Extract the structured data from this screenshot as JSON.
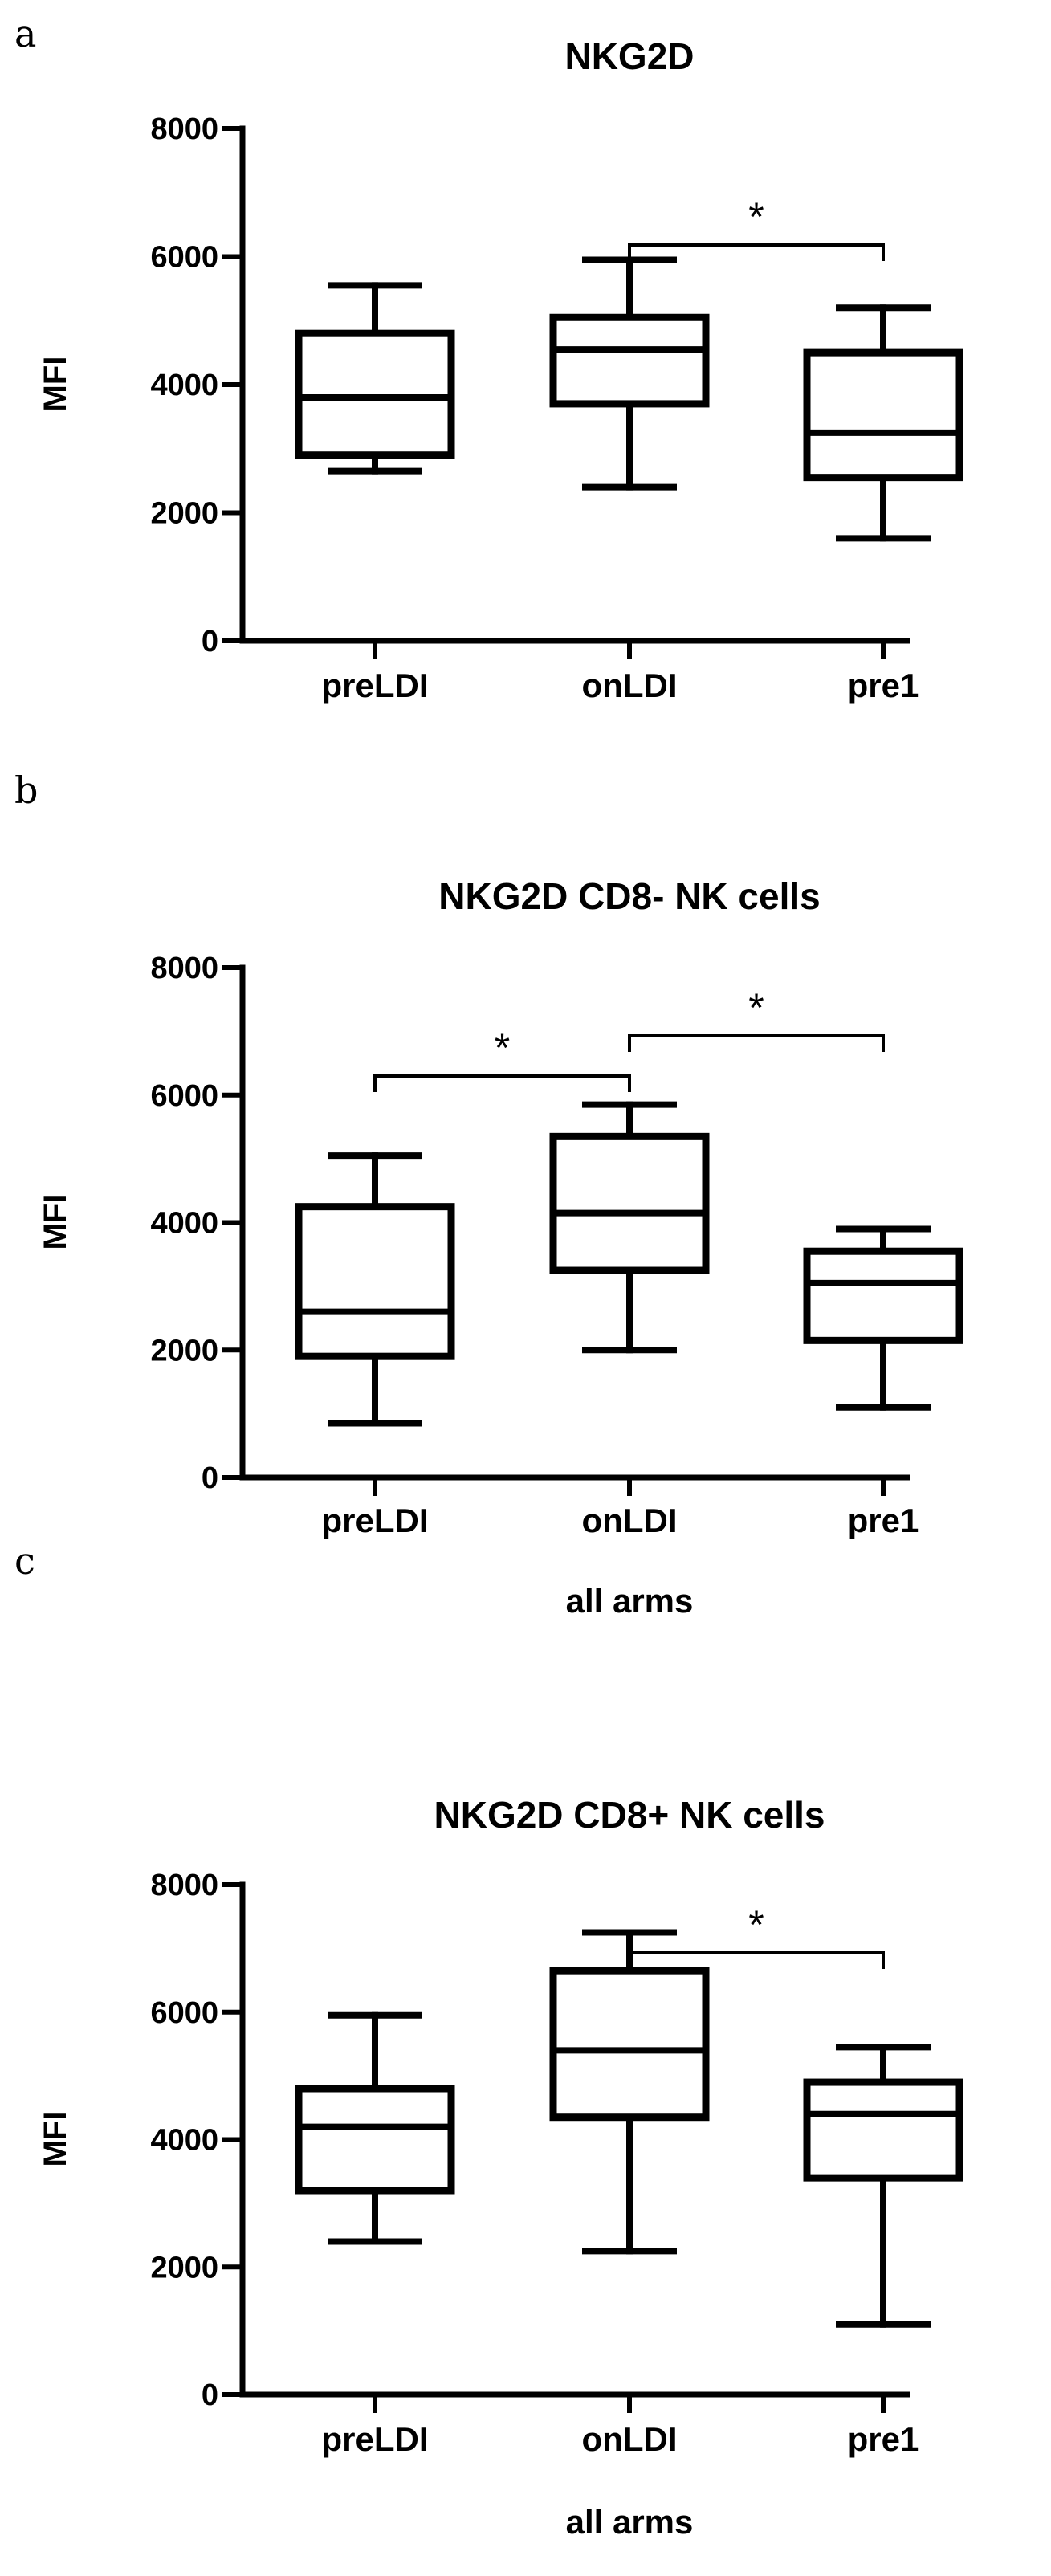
{
  "chart_data": [
    {
      "type": "box",
      "panel": "a",
      "title": "NKG2D",
      "ylabel": "MFI",
      "xlabel": "",
      "ylim": [
        0,
        8000
      ],
      "yticks": [
        "0",
        "2000",
        "4000",
        "6000",
        "8000"
      ],
      "categories": [
        "preLDI",
        "onLDI",
        "pre1"
      ],
      "boxes": [
        {
          "category": "preLDI",
          "min": 2650,
          "q1": 2900,
          "median": 3800,
          "q3": 4800,
          "max": 5550
        },
        {
          "category": "onLDI",
          "min": 2400,
          "q1": 3700,
          "median": 4550,
          "q3": 5050,
          "max": 5950
        },
        {
          "category": "pre1",
          "min": 1600,
          "q1": 2550,
          "median": 3250,
          "q3": 4500,
          "max": 5200
        }
      ],
      "significance": [
        {
          "from": "onLDI",
          "to": "pre1",
          "label": "*"
        }
      ]
    },
    {
      "type": "box",
      "panel": "b",
      "title": "NKG2D CD8- NK cells",
      "ylabel": "MFI",
      "xlabel": "all arms",
      "ylim": [
        0,
        8000
      ],
      "yticks": [
        "0",
        "2000",
        "4000",
        "6000",
        "8000"
      ],
      "categories": [
        "preLDI",
        "onLDI",
        "pre1"
      ],
      "boxes": [
        {
          "category": "preLDI",
          "min": 850,
          "q1": 1900,
          "median": 2600,
          "q3": 4250,
          "max": 5050
        },
        {
          "category": "onLDI",
          "min": 2000,
          "q1": 3250,
          "median": 4150,
          "q3": 5350,
          "max": 5850
        },
        {
          "category": "pre1",
          "min": 1100,
          "q1": 2150,
          "median": 3050,
          "q3": 3550,
          "max": 3900
        }
      ],
      "significance": [
        {
          "from": "preLDI",
          "to": "onLDI",
          "label": "*"
        },
        {
          "from": "onLDI",
          "to": "pre1",
          "label": "*"
        }
      ]
    },
    {
      "type": "box",
      "panel": "c",
      "title": "NKG2D CD8+ NK cells",
      "ylabel": "MFI",
      "xlabel": "all arms",
      "ylim": [
        0,
        8000
      ],
      "yticks": [
        "0",
        "2000",
        "4000",
        "6000",
        "8000"
      ],
      "categories": [
        "preLDI",
        "onLDI",
        "pre1"
      ],
      "boxes": [
        {
          "category": "preLDI",
          "min": 2400,
          "q1": 3200,
          "median": 4200,
          "q3": 4800,
          "max": 5950
        },
        {
          "category": "onLDI",
          "min": 2250,
          "q1": 4350,
          "median": 5400,
          "q3": 6650,
          "max": 7250
        },
        {
          "category": "pre1",
          "min": 1100,
          "q1": 3400,
          "median": 4400,
          "q3": 4900,
          "max": 5450
        }
      ],
      "significance": [
        {
          "from": "onLDI",
          "to": "pre1",
          "label": "*"
        }
      ]
    }
  ]
}
